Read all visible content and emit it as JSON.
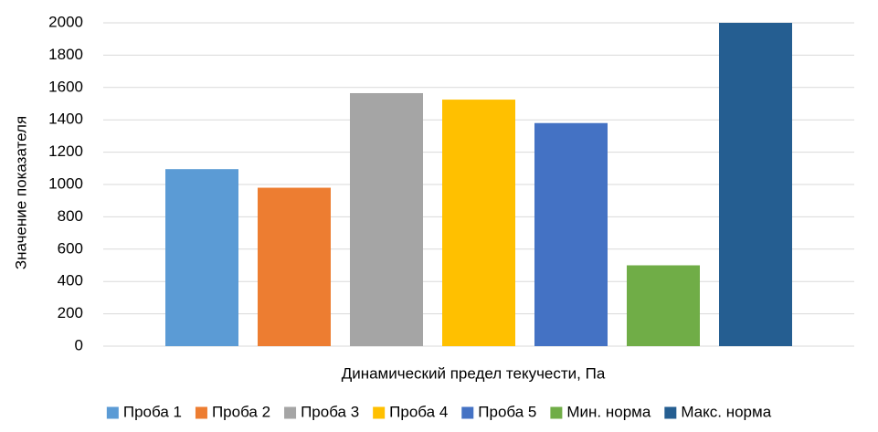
{
  "chart_data": {
    "type": "bar",
    "title": "",
    "xlabel": "Динамический предел текучести, Па",
    "ylabel": "Значение показателя",
    "ylim": [
      0,
      2000
    ],
    "yticks": [
      0,
      200,
      400,
      600,
      800,
      1000,
      1200,
      1400,
      1600,
      1800,
      2000
    ],
    "grid": true,
    "legend_position": "bottom",
    "series": [
      {
        "name": "Проба 1",
        "values": [
          1095
        ],
        "color": "#5b9bd5"
      },
      {
        "name": "Проба 2",
        "values": [
          980
        ],
        "color": "#ed7d31"
      },
      {
        "name": "Проба 3",
        "values": [
          1565
        ],
        "color": "#a5a5a5"
      },
      {
        "name": "Проба 4",
        "values": [
          1525
        ],
        "color": "#ffc000"
      },
      {
        "name": "Проба 5",
        "values": [
          1380
        ],
        "color": "#4472c4"
      },
      {
        "name": "Мин. норма",
        "values": [
          500
        ],
        "color": "#70ad47"
      },
      {
        "name": "Макс. норма",
        "values": [
          2000
        ],
        "color": "#255e91"
      }
    ]
  }
}
